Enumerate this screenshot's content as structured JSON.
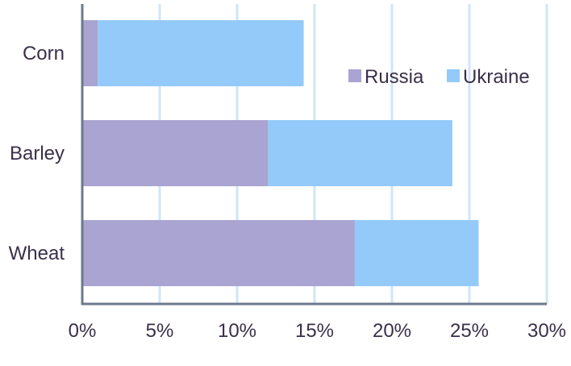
{
  "chart_data": {
    "type": "bar",
    "orientation": "horizontal",
    "stacked": true,
    "categories": [
      "Corn",
      "Barley",
      "Wheat"
    ],
    "series": [
      {
        "name": "Russia",
        "values": [
          1.0,
          12.0,
          17.6
        ],
        "color": "#a9a4d1"
      },
      {
        "name": "Ukraine",
        "values": [
          13.3,
          11.9,
          8.0
        ],
        "color": "#93caf9"
      }
    ],
    "x_ticks": [
      "0%",
      "5%",
      "10%",
      "15%",
      "20%",
      "25%",
      "30%"
    ],
    "xlim": [
      0,
      30
    ],
    "grid": true,
    "legend_position": "top-right",
    "gridline_color": "#cfe6f7",
    "axis_color": "#6b7a8c"
  }
}
